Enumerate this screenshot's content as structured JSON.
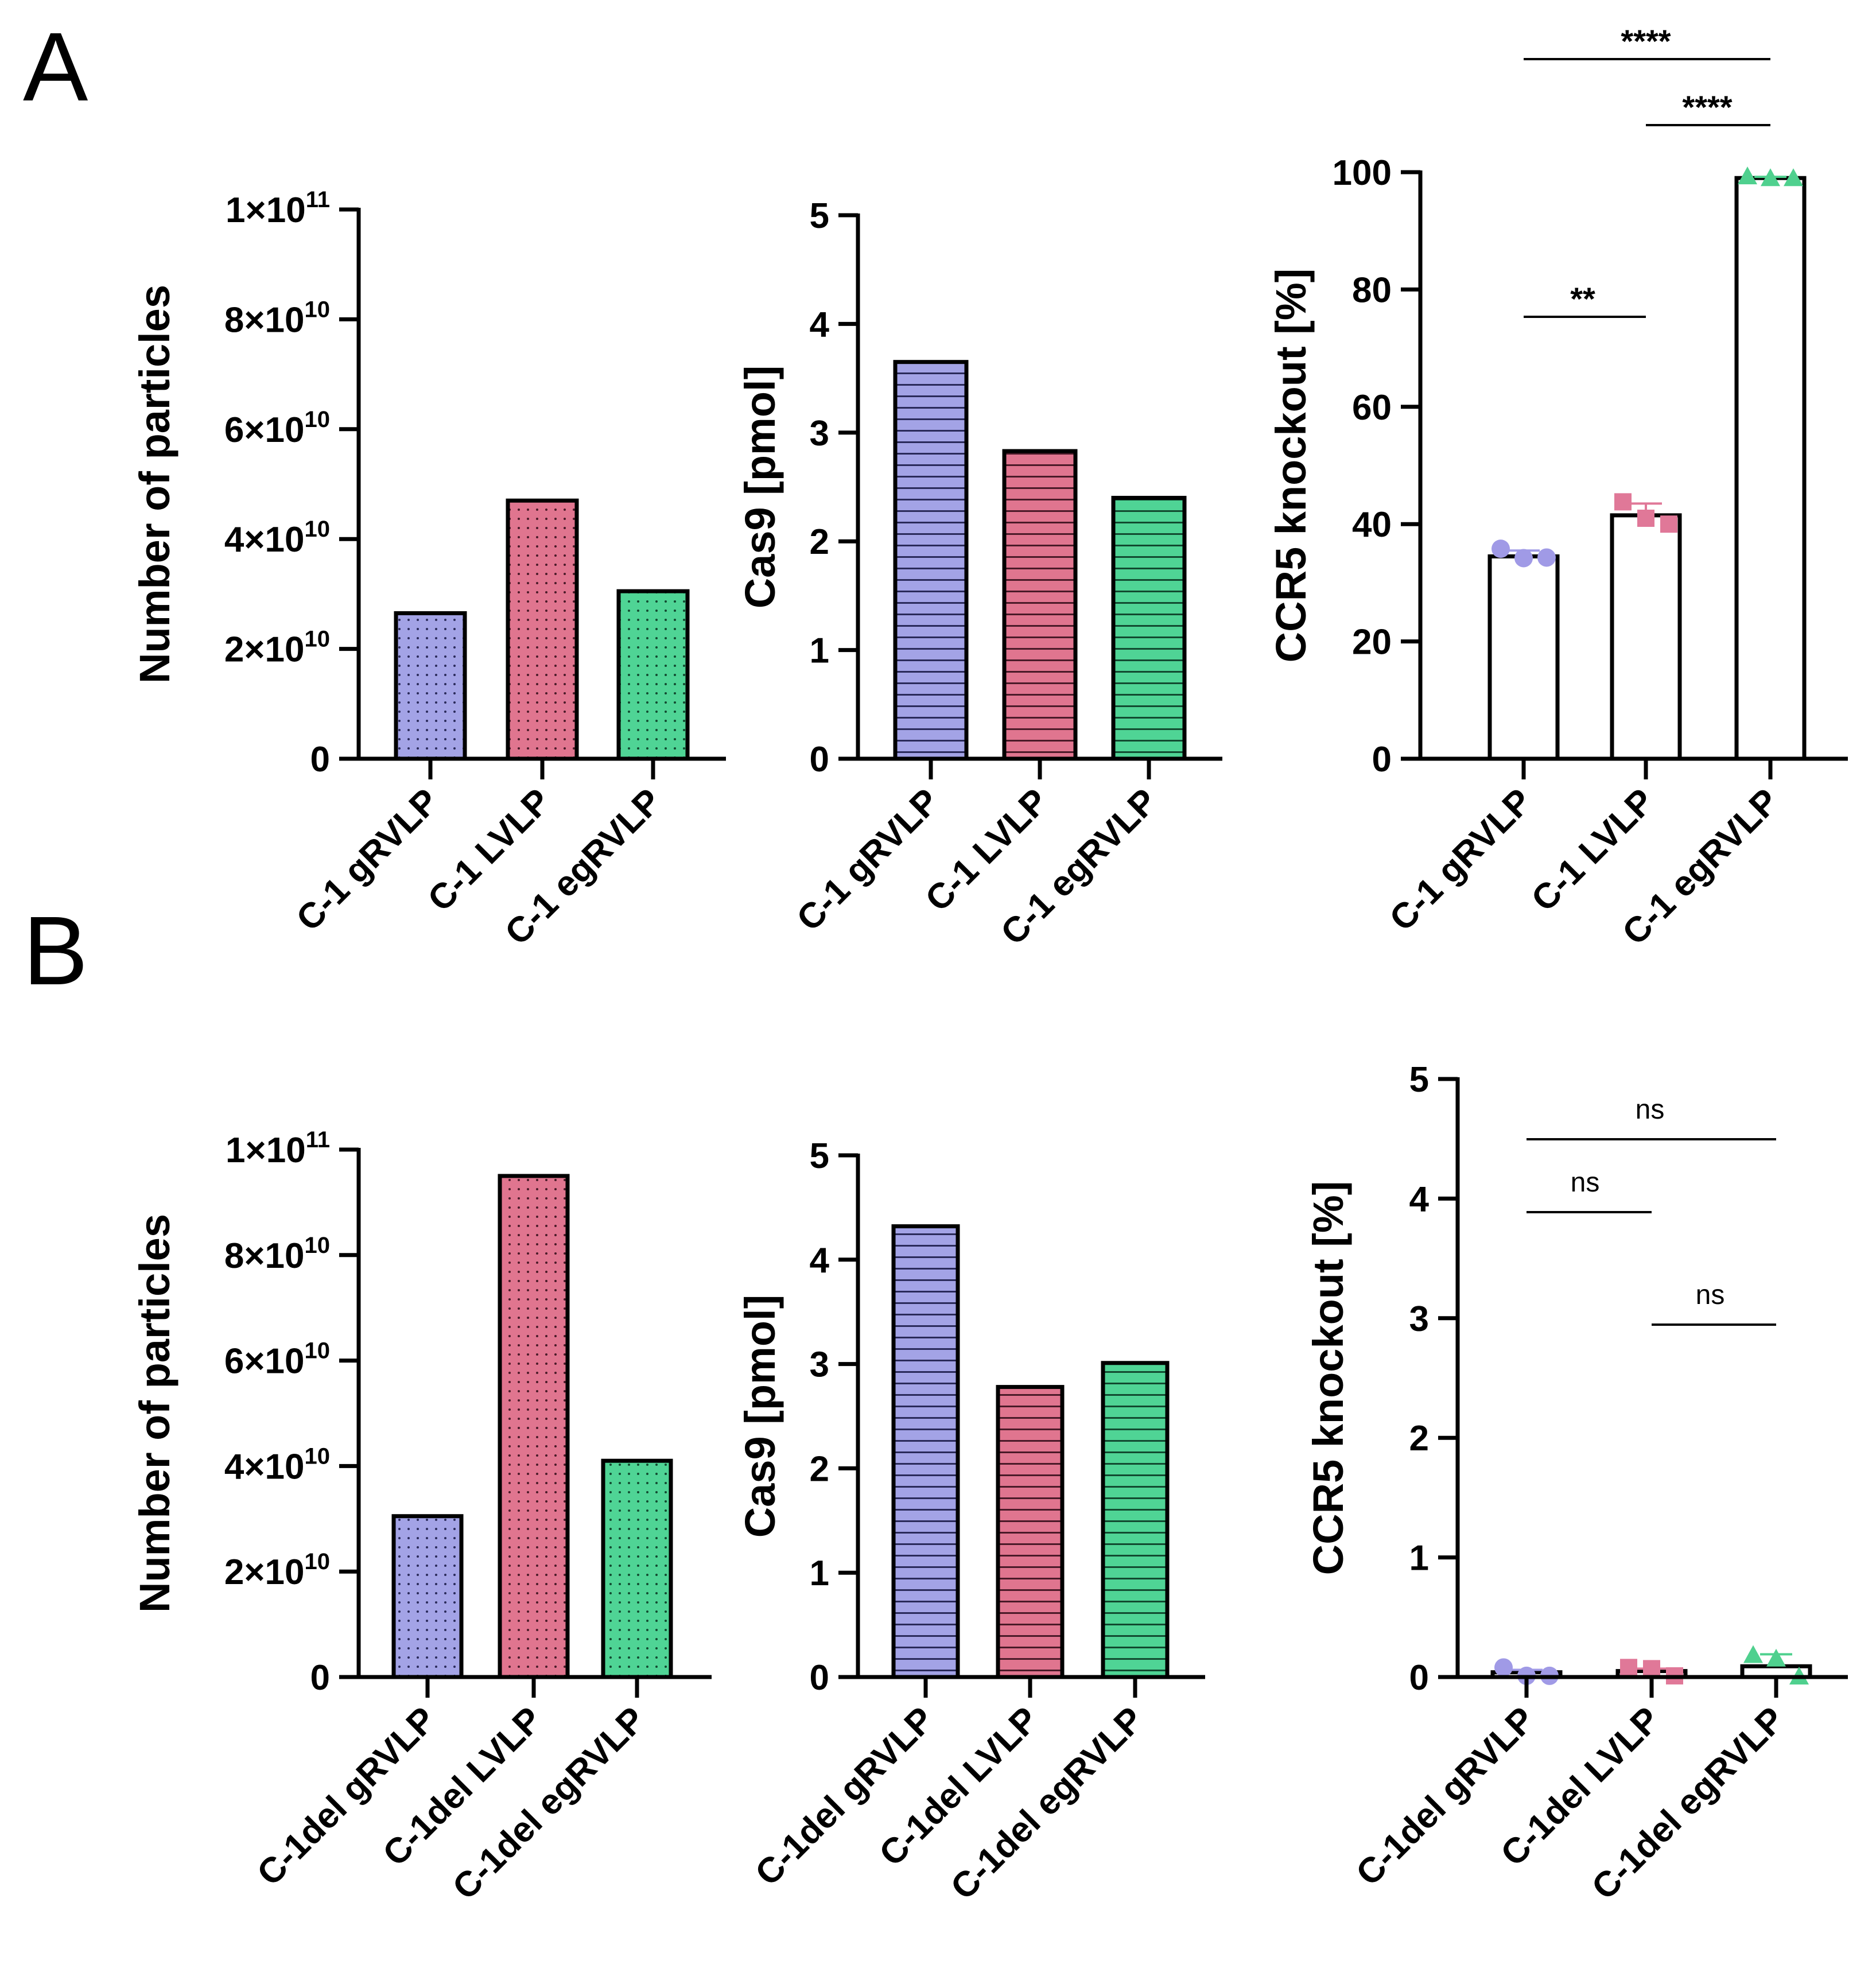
{
  "colors": {
    "blue": "#a3a3e6",
    "pink": "#e0758f",
    "green": "#4fd495",
    "blue_marker": "#a09ae6",
    "pink_marker": "#e07898",
    "green_marker": "#4fd08e"
  },
  "panels": {
    "A": "A",
    "B": "B"
  },
  "chart_data": [
    {
      "id": "A1",
      "panel": "A",
      "type": "bar",
      "pattern": "dots",
      "categories": [
        "C-1 gRVLP",
        "C-1 LVLP",
        "C-1 egRVLP"
      ],
      "values": [
        26500000000,
        47000000000,
        30500000000
      ],
      "ylabel": "Number of particles",
      "ylim": [
        0,
        100000000000
      ],
      "ticks": [
        {
          "value": 0,
          "base": "0",
          "exp": ""
        },
        {
          "value": 20000000000,
          "base": "2×10",
          "exp": "10"
        },
        {
          "value": 40000000000,
          "base": "4×10",
          "exp": "10"
        },
        {
          "value": 60000000000,
          "base": "6×10",
          "exp": "10"
        },
        {
          "value": 80000000000,
          "base": "8×10",
          "exp": "10"
        },
        {
          "value": 100000000000,
          "base": "1×10",
          "exp": "11"
        }
      ]
    },
    {
      "id": "A2",
      "panel": "A",
      "type": "bar",
      "pattern": "hlines",
      "categories": [
        "C-1 gRVLP",
        "C-1 LVLP",
        "C-1 egRVLP"
      ],
      "values": [
        3.65,
        2.83,
        2.4
      ],
      "ylabel": "Cas9 [pmol]",
      "ylim": [
        0,
        5
      ],
      "ticks": [
        {
          "value": 0,
          "base": "0",
          "exp": ""
        },
        {
          "value": 1,
          "base": "1",
          "exp": ""
        },
        {
          "value": 2,
          "base": "2",
          "exp": ""
        },
        {
          "value": 3,
          "base": "3",
          "exp": ""
        },
        {
          "value": 4,
          "base": "4",
          "exp": ""
        },
        {
          "value": 5,
          "base": "5",
          "exp": ""
        }
      ]
    },
    {
      "id": "A3",
      "panel": "A",
      "type": "bar",
      "pattern": "open",
      "categories": [
        "C-1 gRVLP",
        "C-1 LVLP",
        "C-1 egRVLP"
      ],
      "values": [
        34.5,
        41.5,
        99
      ],
      "errors": [
        1.0,
        2.0,
        0.2
      ],
      "points": [
        [
          35.8,
          34.2,
          34.3
        ],
        [
          43.8,
          41.0,
          40.0
        ],
        [
          99.2,
          98.9,
          98.9
        ]
      ],
      "ylabel": "CCR5 knockout [%]",
      "ylim": [
        0,
        100
      ],
      "ticks": [
        {
          "value": 0,
          "base": "0",
          "exp": ""
        },
        {
          "value": 20,
          "base": "20",
          "exp": ""
        },
        {
          "value": 40,
          "base": "40",
          "exp": ""
        },
        {
          "value": 60,
          "base": "60",
          "exp": ""
        },
        {
          "value": 80,
          "base": "80",
          "exp": ""
        },
        {
          "value": 100,
          "base": "100",
          "exp": ""
        }
      ],
      "significance": [
        {
          "from": 0,
          "to": 1,
          "label": "**"
        },
        {
          "from": 0,
          "to": 2,
          "label": "****"
        },
        {
          "from": 1,
          "to": 2,
          "label": "****"
        }
      ]
    },
    {
      "id": "B1",
      "panel": "B",
      "type": "bar",
      "pattern": "dots",
      "categories": [
        "C-1del gRVLP",
        "C-1del LVLP",
        "C-1del egRVLP"
      ],
      "values": [
        30500000000,
        95000000000,
        41000000000
      ],
      "ylabel": "Number of particles",
      "ylim": [
        0,
        100000000000
      ],
      "ticks": [
        {
          "value": 0,
          "base": "0",
          "exp": ""
        },
        {
          "value": 20000000000,
          "base": "2×10",
          "exp": "10"
        },
        {
          "value": 40000000000,
          "base": "4×10",
          "exp": "10"
        },
        {
          "value": 60000000000,
          "base": "6×10",
          "exp": "10"
        },
        {
          "value": 80000000000,
          "base": "8×10",
          "exp": "10"
        },
        {
          "value": 100000000000,
          "base": "1×10",
          "exp": "11"
        }
      ]
    },
    {
      "id": "B2",
      "panel": "B",
      "type": "bar",
      "pattern": "hlines",
      "categories": [
        "C-1del gRVLP",
        "C-1del LVLP",
        "C-1del egRVLP"
      ],
      "values": [
        4.32,
        2.78,
        3.01
      ],
      "ylabel": "Cas9 [pmol]",
      "ylim": [
        0,
        5
      ],
      "ticks": [
        {
          "value": 0,
          "base": "0",
          "exp": ""
        },
        {
          "value": 1,
          "base": "1",
          "exp": ""
        },
        {
          "value": 2,
          "base": "2",
          "exp": ""
        },
        {
          "value": 3,
          "base": "3",
          "exp": ""
        },
        {
          "value": 4,
          "base": "4",
          "exp": ""
        },
        {
          "value": 5,
          "base": "5",
          "exp": ""
        }
      ]
    },
    {
      "id": "B3",
      "panel": "B",
      "type": "bar",
      "pattern": "open",
      "categories": [
        "C-1del gRVLP",
        "C-1del LVLP",
        "C-1del egRVLP"
      ],
      "values": [
        0.04,
        0.05,
        0.09
      ],
      "errors": [
        0.02,
        0.02,
        0.1
      ],
      "points": [
        [
          0.08,
          0.01,
          0.01
        ],
        [
          0.08,
          0.07,
          0.01
        ],
        [
          0.18,
          0.15,
          0.0
        ]
      ],
      "ylabel": "CCR5 knockout [%]",
      "ylim": [
        0,
        5
      ],
      "ticks": [
        {
          "value": 0,
          "base": "0",
          "exp": ""
        },
        {
          "value": 1,
          "base": "1",
          "exp": ""
        },
        {
          "value": 2,
          "base": "2",
          "exp": ""
        },
        {
          "value": 3,
          "base": "3",
          "exp": ""
        },
        {
          "value": 4,
          "base": "4",
          "exp": ""
        },
        {
          "value": 5,
          "base": "5",
          "exp": ""
        }
      ],
      "significance": [
        {
          "from": 0,
          "to": 2,
          "label": "ns"
        },
        {
          "from": 0,
          "to": 1,
          "label": "ns"
        },
        {
          "from": 1,
          "to": 2,
          "label": "ns"
        }
      ]
    }
  ]
}
